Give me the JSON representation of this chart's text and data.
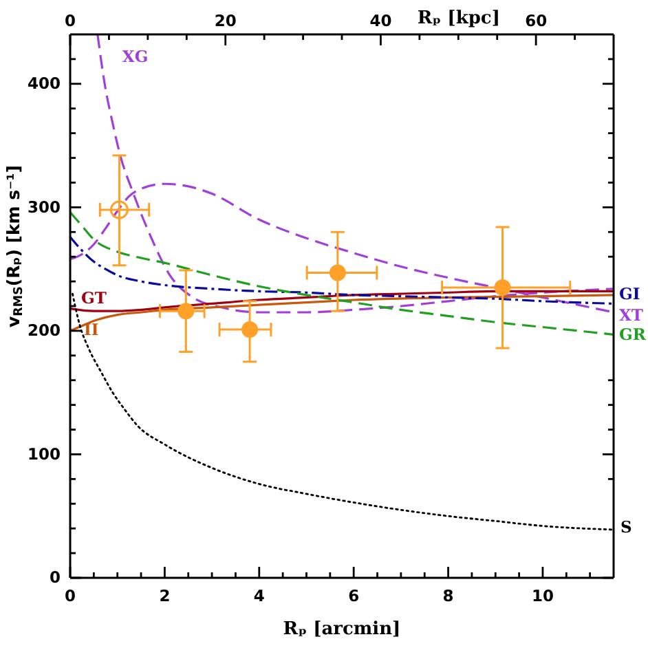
{
  "chart_data": {
    "type": "line",
    "xlabel": "Rₚ [arcmin]",
    "x2label": "Rₚ [kpc]",
    "ylabel": "v$_{RMS}$(Rₚ) [km s⁻¹]",
    "xlim": [
      0,
      11.5
    ],
    "xticks": [
      0,
      {
        "value": 0.5,
        "label": null
      },
      {
        "value": 1,
        "label": null
      },
      {
        "value": 1.5,
        "label": null
      },
      2,
      {
        "value": 2.5,
        "label": null
      },
      {
        "value": 3,
        "label": null
      },
      {
        "value": 3.5,
        "label": null
      },
      4,
      {
        "value": 4.5,
        "label": null
      },
      {
        "value": 5,
        "label": null
      },
      {
        "value": 5.5,
        "label": null
      },
      6,
      {
        "value": 6.5,
        "label": null
      },
      {
        "value": 7,
        "label": null
      },
      {
        "value": 7.5,
        "label": null
      },
      8,
      {
        "value": 8.5,
        "label": null
      },
      {
        "value": 9,
        "label": null
      },
      {
        "value": 9.5,
        "label": null
      },
      10,
      {
        "value": 10.5,
        "label": null
      },
      {
        "value": 11,
        "label": null
      }
    ],
    "x2lim": [
      0,
      70
    ],
    "x2ticks": [
      0,
      {
        "value": 5,
        "label": null
      },
      {
        "value": 10,
        "label": null
      },
      {
        "value": 15,
        "label": null
      },
      20,
      {
        "value": 25,
        "label": null
      },
      {
        "value": 30,
        "label": null
      },
      {
        "value": 35,
        "label": null
      },
      40,
      {
        "value": 45,
        "label": null
      },
      {
        "value": 50,
        "label": null
      },
      {
        "value": 55,
        "label": null
      },
      60,
      {
        "value": 65,
        "label": null
      }
    ],
    "ylim": [
      0,
      440
    ],
    "yticks": [
      0,
      {
        "value": 20,
        "label": null
      },
      {
        "value": 40,
        "label": null
      },
      {
        "value": 60,
        "label": null
      },
      {
        "value": 80,
        "label": null
      },
      100,
      {
        "value": 120,
        "label": null
      },
      {
        "value": 140,
        "label": null
      },
      {
        "value": 160,
        "label": null
      },
      {
        "value": 180,
        "label": null
      },
      200,
      {
        "value": 220,
        "label": null
      },
      {
        "value": 240,
        "label": null
      },
      {
        "value": 260,
        "label": null
      },
      {
        "value": 280,
        "label": null
      },
      300,
      {
        "value": 320,
        "label": null
      },
      {
        "value": 340,
        "label": null
      },
      {
        "value": 360,
        "label": null
      },
      {
        "value": 380,
        "label": null
      },
      400,
      {
        "value": 420,
        "label": null
      }
    ],
    "series": [
      {
        "name": "XG",
        "color": "#a040d8",
        "line_style": "dashed",
        "x": [
          0.58,
          0.73,
          0.9,
          1.06,
          1.33,
          1.72,
          2.11,
          2.6,
          3.2,
          4,
          5,
          6,
          7,
          8,
          9,
          10,
          11.5
        ],
        "values": [
          440,
          400,
          368,
          342,
          312,
          275,
          245,
          227,
          219,
          215,
          215,
          217,
          220,
          224,
          228,
          231,
          234
        ]
      },
      {
        "name": "XT",
        "color": "#a040d8",
        "line_style": "dashed",
        "x": [
          0,
          0.25,
          0.5,
          0.75,
          1,
          1.25,
          1.5,
          2,
          2.5,
          3,
          4,
          5,
          6,
          7,
          8,
          9,
          10,
          11.5
        ],
        "values": [
          258,
          262,
          270,
          283,
          297,
          309,
          315,
          319,
          317,
          311,
          290,
          275,
          263,
          252,
          243,
          235,
          227,
          215
        ]
      },
      {
        "name": "GT",
        "color": "#a00010",
        "line_style": "solid",
        "x": [
          0,
          0.5,
          1,
          1.5,
          2,
          3,
          4,
          5,
          6,
          7,
          8,
          9,
          10,
          11.5
        ],
        "values": [
          218,
          216,
          216,
          217,
          219,
          222,
          225,
          227,
          229,
          230,
          231,
          232,
          232,
          232
        ]
      },
      {
        "name": "II",
        "color": "#c8580c",
        "line_style": "solid",
        "x": [
          0,
          0.25,
          0.5,
          1,
          1.5,
          2,
          3,
          4,
          5,
          6,
          8,
          10,
          11.5
        ],
        "values": [
          200,
          204,
          208,
          213,
          215,
          217,
          219,
          221,
          223,
          225,
          227,
          228,
          229
        ]
      },
      {
        "name": "GI",
        "color": "#0a0aa0",
        "line_style": "dashdot",
        "x": [
          0,
          0.25,
          0.5,
          0.75,
          1,
          1.5,
          2,
          3,
          4,
          5,
          6,
          7,
          8,
          9,
          10,
          11.5
        ],
        "values": [
          276,
          265,
          256,
          250,
          245,
          240,
          237,
          234,
          232,
          231,
          229,
          228,
          227,
          226,
          224,
          222
        ]
      },
      {
        "name": "GR",
        "color": "#20a020",
        "line_style": "dashed",
        "x": [
          0,
          0.25,
          0.5,
          1,
          1.5,
          2,
          3,
          4,
          5,
          6,
          7,
          8,
          9,
          10,
          11.5
        ],
        "values": [
          296,
          285,
          274,
          264,
          259,
          255,
          245,
          236,
          229,
          223,
          217,
          212,
          207,
          203,
          197
        ]
      },
      {
        "name": "S",
        "color": "#000000",
        "line_style": "dotted",
        "x": [
          0.05,
          0.2,
          0.4,
          0.65,
          0.9,
          1.14,
          1.43,
          2,
          3,
          4,
          5,
          6,
          7,
          8,
          9,
          10,
          11.5
        ],
        "values": [
          230,
          205,
          185,
          167,
          150,
          137,
          123,
          108,
          89,
          76,
          68,
          61,
          55,
          50,
          46,
          42,
          39
        ]
      },
      {
        "type": "scatter",
        "color": "#ffa028",
        "marker": "circle",
        "x": [
          2.45,
          3.8,
          5.66,
          9.15
        ],
        "values": [
          216,
          201,
          247,
          235
        ],
        "errors": [
          [
            183,
            249
          ],
          [
            175,
            224
          ],
          [
            216,
            280
          ],
          [
            186,
            284
          ]
        ],
        "xerrors": [
          [
            1.9,
            2.84
          ],
          [
            3.16,
            4.25
          ],
          [
            5.01,
            6.49
          ],
          [
            7.87,
            10.58
          ]
        ]
      },
      {
        "type": "scatter",
        "color": "#ffa028",
        "marker": "circle-open",
        "x": [
          1.04
        ],
        "values": [
          298
        ],
        "errors": [
          [
            253,
            342
          ]
        ],
        "xerrors": [
          [
            0.63,
            1.67
          ]
        ]
      }
    ]
  }
}
